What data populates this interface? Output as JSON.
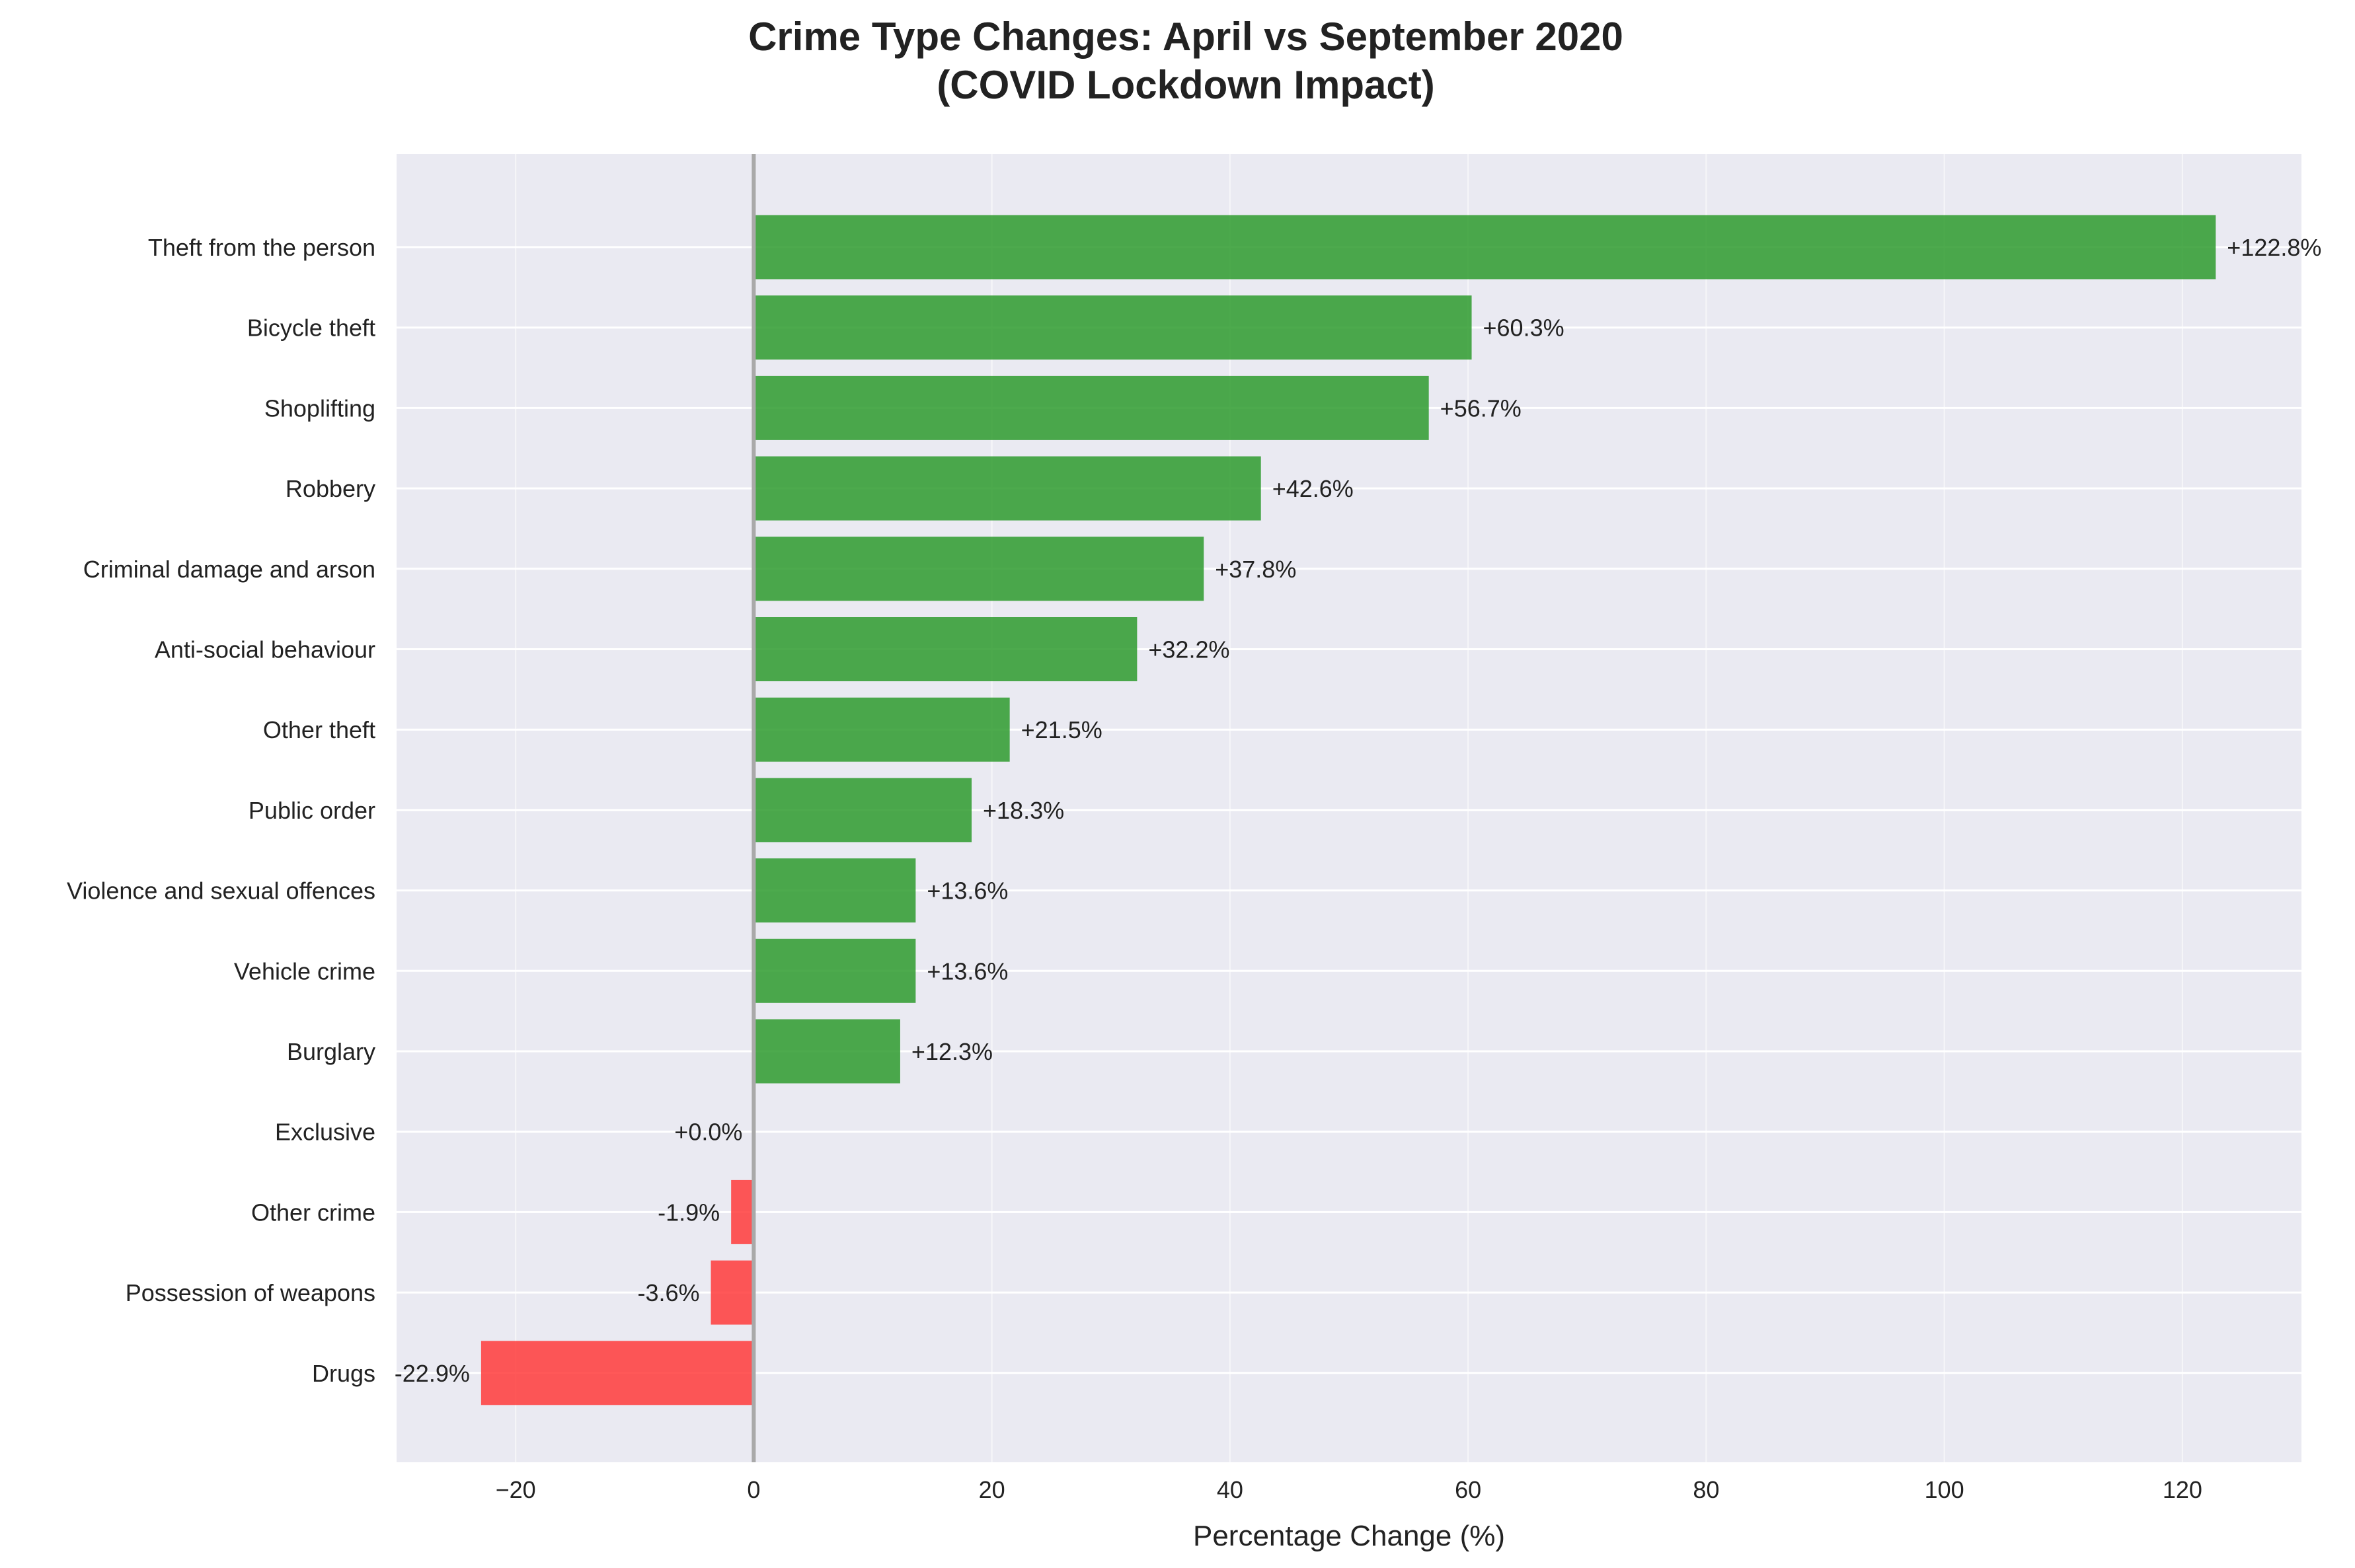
{
  "chart_data": {
    "type": "bar",
    "orientation": "horizontal",
    "title_lines": [
      "Crime Type Changes: April vs September 2020",
      "(COVID Lockdown Impact)"
    ],
    "xlabel": "Percentage Change (%)",
    "ylabel": "",
    "xlim": [
      -30,
      130
    ],
    "xticks": [
      -20,
      0,
      20,
      40,
      60,
      80,
      100,
      120
    ],
    "grid": true,
    "categories": [
      "Theft from the person",
      "Bicycle theft",
      "Shoplifting",
      "Robbery",
      "Criminal damage and arson",
      "Anti-social behaviour",
      "Other theft",
      "Public order",
      "Violence and sexual offences",
      "Vehicle crime",
      "Burglary",
      "Exclusive",
      "Other crime",
      "Possession of weapons",
      "Drugs"
    ],
    "values": [
      122.8,
      60.3,
      56.7,
      42.6,
      37.8,
      32.2,
      21.5,
      18.3,
      13.6,
      13.6,
      12.3,
      0.0,
      -1.9,
      -3.6,
      -22.9
    ],
    "value_labels": [
      "+122.8%",
      "+60.3%",
      "+56.7%",
      "+42.6%",
      "+37.8%",
      "+32.2%",
      "+21.5%",
      "+18.3%",
      "+13.6%",
      "+13.6%",
      "+12.3%",
      "+0.0%",
      "-1.9%",
      "-3.6%",
      "-22.9%"
    ],
    "colors": {
      "increase": "#2e9b2e",
      "decrease": "#ff3b3b",
      "background": "#eaeaf2",
      "grid": "#ffffff",
      "zero_line": "#a9a9a9"
    }
  }
}
